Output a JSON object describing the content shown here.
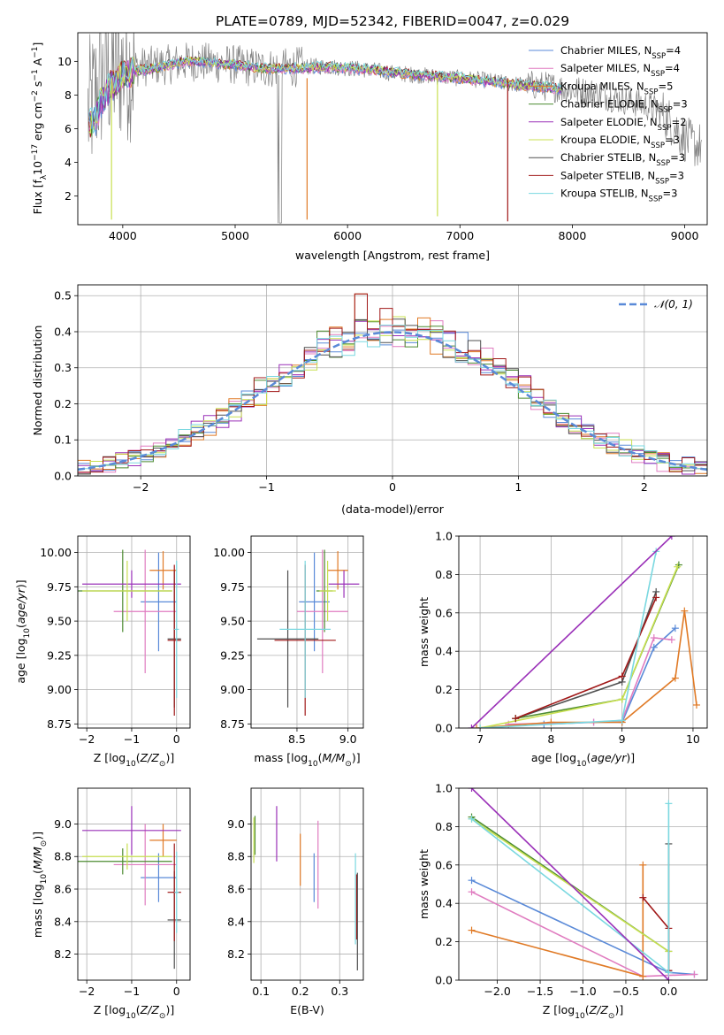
{
  "figure_title": "PLATE=0789, MJD=52342, FIBERID=0047, z=0.029",
  "model_colors": [
    "#5a8ad8",
    "#e07cc0",
    "#e07a26",
    "#4c8b30",
    "#9a30b8",
    "#c8e050",
    "#505050",
    "#a01818",
    "#7ad8e0"
  ],
  "chart_data": [
    {
      "id": "spectrum",
      "type": "line",
      "title": "PLATE=0789, MJD=52342, FIBERID=0047, z=0.029",
      "xlabel": "wavelength [Angstrom, rest frame]",
      "ylabel_parts": [
        "Flux [f",
        "λ",
        "10",
        "−17",
        " erg cm",
        "−2",
        " s",
        "−1",
        " A",
        "−1",
        "]"
      ],
      "xlim": [
        3600,
        9200
      ],
      "ylim": [
        0.3,
        11.7
      ],
      "xticks": [
        4000,
        5000,
        6000,
        7000,
        8000,
        9000
      ],
      "yticks": [
        2,
        4,
        6,
        8,
        10
      ],
      "grid": false,
      "legend_position": "upper right",
      "legend": [
        {
          "name": "Chabrier MILES, N",
          "sub": "SSP",
          "tail": "=4"
        },
        {
          "name": "Salpeter MILES, N",
          "sub": "SSP",
          "tail": "=4"
        },
        {
          "name": "Kroupa MILES, N",
          "sub": "SSP",
          "tail": "=5"
        },
        {
          "name": "Chabrier ELODIE, N",
          "sub": "SSP",
          "tail": "=3"
        },
        {
          "name": "Salpeter ELODIE, N",
          "sub": "SSP",
          "tail": "=2"
        },
        {
          "name": "Kroupa ELODIE, N",
          "sub": "SSP",
          "tail": "=3"
        },
        {
          "name": "Chabrier STELIB, N",
          "sub": "SSP",
          "tail": "=3"
        },
        {
          "name": "Salpeter STELIB, N",
          "sub": "SSP",
          "tail": "=3"
        },
        {
          "name": "Kroupa STELIB, N",
          "sub": "SSP",
          "tail": "=3"
        }
      ],
      "observed_continuum": {
        "x": [
          3700,
          3800,
          3900,
          4000,
          4200,
          4400,
          4600,
          4800,
          5000,
          5200,
          5400,
          5600,
          5800,
          6000,
          6200,
          6400,
          6600,
          6800,
          7000,
          7200,
          7400,
          7600,
          7800,
          8000,
          8200,
          8400,
          8600,
          8800,
          9000,
          9100
        ],
        "y": [
          7.0,
          8.8,
          9.4,
          9.6,
          9.7,
          9.8,
          10.0,
          9.9,
          9.8,
          9.6,
          9.6,
          9.7,
          9.7,
          9.6,
          9.5,
          9.3,
          9.2,
          9.1,
          9.0,
          8.9,
          8.7,
          8.6,
          8.5,
          8.3,
          8.1,
          7.8,
          7.5,
          7.0,
          5.4,
          5.0
        ]
      },
      "model_continuum": {
        "x": [
          3700,
          3760,
          3800,
          3900,
          4000,
          4100,
          4200,
          4300,
          4400,
          4600,
          4800,
          5000,
          5200,
          5400,
          5600,
          5800,
          6000,
          6200,
          6400,
          6600,
          6800,
          7000,
          7200,
          7400,
          7600,
          7800,
          7900
        ],
        "y": [
          6.2,
          6.6,
          7.5,
          8.6,
          9.2,
          9.4,
          9.5,
          9.6,
          9.8,
          10.0,
          9.9,
          9.8,
          9.6,
          9.55,
          9.6,
          9.65,
          9.6,
          9.5,
          9.35,
          9.2,
          9.1,
          9.0,
          8.85,
          8.7,
          8.55,
          8.45,
          8.3
        ]
      },
      "spikes": [
        {
          "x": 3900,
          "y": 0.6
        },
        {
          "x": 5640,
          "y": 0.6
        },
        {
          "x": 6800,
          "y": 0.8
        },
        {
          "x": 7425,
          "y": 0.5
        }
      ]
    },
    {
      "id": "residuals",
      "type": "histogram",
      "xlabel": "(data-model)/error",
      "ylabel": "Normed distribution",
      "xlim": [
        -2.5,
        2.5
      ],
      "ylim": [
        0,
        0.53
      ],
      "xticks": [
        -2,
        -1,
        0,
        1,
        2
      ],
      "yticks": [
        0.0,
        0.1,
        0.2,
        0.3,
        0.4,
        0.5
      ],
      "grid": true,
      "bin_width": 0.1,
      "legend": "𝒩(0, 1)",
      "legend_position": "upper right",
      "reference_curve": "normal(0,1)"
    },
    {
      "id": "age-vs-Z",
      "type": "errorbar",
      "xlabel": "Z [log10(Z/Z⊙)]",
      "ylabel": "age  [log10(age/yr)]",
      "xlim": [
        -2.2,
        0.3
      ],
      "ylim": [
        8.72,
        10.12
      ],
      "xticks": [
        -2,
        -1,
        0
      ],
      "yticks": [
        8.75,
        9.0,
        9.25,
        9.5,
        9.75,
        10.0
      ],
      "grid": true,
      "points": [
        {
          "series": 0,
          "x": -0.4,
          "xerr": 0.4,
          "y": 9.64,
          "yerr": 0.36
        },
        {
          "series": 1,
          "x": -0.7,
          "xerr": 0.7,
          "y": 9.57,
          "yerr": 0.45
        },
        {
          "series": 2,
          "x": -0.3,
          "xerr": 0.3,
          "y": 9.87,
          "yerr": 0.14
        },
        {
          "series": 3,
          "x": -1.2,
          "xerr": 1.1,
          "y": 9.72,
          "yerr": 0.3
        },
        {
          "series": 4,
          "x": -1.0,
          "xerr": 1.1,
          "y": 9.77,
          "yerr": 0.1
        },
        {
          "series": 5,
          "x": -1.1,
          "xerr": 1.0,
          "y": 9.72,
          "yerr": 0.22
        },
        {
          "series": 6,
          "x": -0.05,
          "xerr": 0.15,
          "y": 9.37,
          "yerr": 0.5
        },
        {
          "series": 7,
          "x": -0.05,
          "xerr": 0.15,
          "y": 9.36,
          "yerr": 0.55
        },
        {
          "series": 8,
          "x": 0.0,
          "xerr": 0.05,
          "y": 9.44,
          "yerr": 0.5
        }
      ]
    },
    {
      "id": "age-vs-mass",
      "type": "errorbar",
      "xlabel": "mass [log10(M/M⊙)]",
      "ylabel": "",
      "xlim": [
        8.05,
        9.15
      ],
      "ylim": [
        8.72,
        10.12
      ],
      "xticks": [
        8.5,
        9.0
      ],
      "yticks": [
        8.75,
        9.0,
        9.25,
        9.5,
        9.75,
        10.0
      ],
      "grid": true,
      "points": [
        {
          "series": 0,
          "x": 8.67,
          "xerr": 0.15,
          "y": 9.64,
          "yerr": 0.36
        },
        {
          "series": 1,
          "x": 8.75,
          "xerr": 0.25,
          "y": 9.57,
          "yerr": 0.45
        },
        {
          "series": 2,
          "x": 8.9,
          "xerr": 0.1,
          "y": 9.87,
          "yerr": 0.14
        },
        {
          "series": 3,
          "x": 8.77,
          "xerr": 0.08,
          "y": 9.72,
          "yerr": 0.3
        },
        {
          "series": 4,
          "x": 8.96,
          "xerr": 0.15,
          "y": 9.77,
          "yerr": 0.1
        },
        {
          "series": 5,
          "x": 8.8,
          "xerr": 0.08,
          "y": 9.72,
          "yerr": 0.22
        },
        {
          "series": 6,
          "x": 8.41,
          "xerr": 0.3,
          "y": 9.37,
          "yerr": 0.5
        },
        {
          "series": 7,
          "x": 8.58,
          "xerr": 0.3,
          "y": 9.36,
          "yerr": 0.55
        },
        {
          "series": 8,
          "x": 8.58,
          "xerr": 0.25,
          "y": 9.44,
          "yerr": 0.5
        }
      ]
    },
    {
      "id": "weight-vs-age",
      "type": "line",
      "xlabel": "age  [log10(age/yr)]",
      "ylabel": "mass weight",
      "xlim": [
        6.7,
        10.2
      ],
      "ylim": [
        0,
        1
      ],
      "xticks": [
        7,
        8,
        9,
        10
      ],
      "yticks": [
        0.0,
        0.2,
        0.4,
        0.6,
        0.8,
        1.0
      ],
      "grid": true,
      "series": [
        {
          "index": 0,
          "x": [
            7.9,
            8.6,
            9.0,
            9.45,
            9.75
          ],
          "y": [
            0.02,
            0.03,
            0.03,
            0.42,
            0.52
          ]
        },
        {
          "index": 1,
          "x": [
            7.4,
            8.6,
            9.0,
            9.45,
            9.7
          ],
          "y": [
            0.02,
            0.03,
            0.04,
            0.47,
            0.46
          ]
        },
        {
          "index": 2,
          "x": [
            6.95,
            8.0,
            9.0,
            9.75,
            9.88,
            10.05
          ],
          "y": [
            0.0,
            0.03,
            0.03,
            0.26,
            0.61,
            0.12
          ]
        },
        {
          "index": 3,
          "x": [
            7.5,
            9.0,
            9.8
          ],
          "y": [
            0.05,
            0.15,
            0.85
          ]
        },
        {
          "index": 4,
          "x": [
            6.88,
            9.7
          ],
          "y": [
            0.0,
            1.0
          ]
        },
        {
          "index": 5,
          "x": [
            7.0,
            9.0,
            9.78
          ],
          "y": [
            0.0,
            0.15,
            0.84
          ]
        },
        {
          "index": 6,
          "x": [
            7.5,
            9.0,
            9.48
          ],
          "y": [
            0.05,
            0.24,
            0.71
          ]
        },
        {
          "index": 7,
          "x": [
            7.5,
            9.0,
            9.48
          ],
          "y": [
            0.05,
            0.27,
            0.68
          ]
        },
        {
          "index": 8,
          "x": [
            7.0,
            9.0,
            9.48
          ],
          "y": [
            0.0,
            0.04,
            0.92
          ]
        }
      ]
    },
    {
      "id": "mass-vs-Z",
      "type": "errorbar",
      "xlabel": "Z [log10(Z/Z⊙)]",
      "ylabel": "mass [log10(M/M⊙)]",
      "xlim": [
        -2.2,
        0.3
      ],
      "ylim": [
        8.04,
        9.22
      ],
      "xticks": [
        -2,
        -1,
        0
      ],
      "yticks": [
        8.2,
        8.4,
        8.6,
        8.8,
        9.0
      ],
      "grid": true,
      "points": [
        {
          "series": 0,
          "x": -0.4,
          "xerr": 0.4,
          "y": 8.67,
          "yerr": 0.15
        },
        {
          "series": 1,
          "x": -0.7,
          "xerr": 0.7,
          "y": 8.75,
          "yerr": 0.25
        },
        {
          "series": 2,
          "x": -0.3,
          "xerr": 0.3,
          "y": 8.9,
          "yerr": 0.1
        },
        {
          "series": 3,
          "x": -1.2,
          "xerr": 1.1,
          "y": 8.77,
          "yerr": 0.08
        },
        {
          "series": 4,
          "x": -1.0,
          "xerr": 1.1,
          "y": 8.96,
          "yerr": 0.15
        },
        {
          "series": 5,
          "x": -1.1,
          "xerr": 1.0,
          "y": 8.8,
          "yerr": 0.08
        },
        {
          "series": 6,
          "x": -0.05,
          "xerr": 0.15,
          "y": 8.41,
          "yerr": 0.3
        },
        {
          "series": 7,
          "x": -0.05,
          "xerr": 0.15,
          "y": 8.58,
          "yerr": 0.3
        },
        {
          "series": 8,
          "x": 0.0,
          "xerr": 0.05,
          "y": 8.58,
          "yerr": 0.25
        }
      ]
    },
    {
      "id": "mass-vs-ebv",
      "type": "errorbar",
      "xlabel": "E(B-V)",
      "ylabel": "",
      "xlim": [
        0.075,
        0.36
      ],
      "ylim": [
        8.04,
        9.22
      ],
      "xticks": [
        0.1,
        0.2,
        0.3
      ],
      "yticks": [
        8.2,
        8.4,
        8.6,
        8.8,
        9.0
      ],
      "grid": true,
      "points": [
        {
          "series": 0,
          "x": 0.235,
          "xerr": 0,
          "y": 8.67,
          "yerr": 0.15
        },
        {
          "series": 1,
          "x": 0.245,
          "xerr": 0,
          "y": 8.75,
          "yerr": 0.27
        },
        {
          "series": 2,
          "x": 0.2,
          "xerr": 0,
          "y": 8.78,
          "yerr": 0.16
        },
        {
          "series": 3,
          "x": 0.085,
          "xerr": 0,
          "y": 8.93,
          "yerr": 0.12
        },
        {
          "series": 4,
          "x": 0.14,
          "xerr": 0,
          "y": 8.94,
          "yerr": 0.17
        },
        {
          "series": 5,
          "x": 0.082,
          "xerr": 0,
          "y": 8.9,
          "yerr": 0.14
        },
        {
          "series": 6,
          "x": 0.345,
          "xerr": 0,
          "y": 8.4,
          "yerr": 0.3
        },
        {
          "series": 7,
          "x": 0.343,
          "xerr": 0,
          "y": 8.49,
          "yerr": 0.2
        },
        {
          "series": 8,
          "x": 0.34,
          "xerr": 0,
          "y": 8.54,
          "yerr": 0.28
        }
      ]
    },
    {
      "id": "weight-vs-Z",
      "type": "line",
      "xlabel": "Z [log10(Z/Z⊙)]",
      "ylabel": "mass weight",
      "xlim": [
        -2.45,
        0.45
      ],
      "ylim": [
        0,
        1
      ],
      "xticks": [
        -2.0,
        -1.5,
        -1.0,
        -0.5,
        0.0
      ],
      "yticks": [
        0.0,
        0.2,
        0.4,
        0.6,
        0.8,
        1.0
      ],
      "grid": true,
      "series": [
        {
          "index": 0,
          "x": [
            -2.3,
            0.0,
            0.3
          ],
          "y": [
            0.52,
            0.04,
            0.03
          ]
        },
        {
          "index": 1,
          "x": [
            -2.3,
            -0.3,
            0.3
          ],
          "y": [
            0.46,
            0.02,
            0.03
          ]
        },
        {
          "index": 2,
          "x": [
            -2.3,
            -0.3,
            -0.3
          ],
          "y": [
            0.26,
            0.02,
            0.6
          ]
        },
        {
          "index": 3,
          "x": [
            -2.3,
            0.0
          ],
          "y": [
            0.85,
            0.15
          ]
        },
        {
          "index": 4,
          "x": [
            -2.3,
            0.0
          ],
          "y": [
            1.0,
            0.0
          ]
        },
        {
          "index": 5,
          "x": [
            -2.3,
            0.0
          ],
          "y": [
            0.84,
            0.15
          ]
        },
        {
          "index": 6,
          "x": [
            0.0,
            0.0
          ],
          "y": [
            0.05,
            0.71
          ]
        },
        {
          "index": 7,
          "x": [
            -0.3,
            0.0,
            0.0
          ],
          "y": [
            0.43,
            0.27,
            0.05
          ]
        },
        {
          "index": 8,
          "x": [
            -2.3,
            0.0,
            0.0
          ],
          "y": [
            0.84,
            0.04,
            0.92
          ]
        }
      ]
    }
  ]
}
